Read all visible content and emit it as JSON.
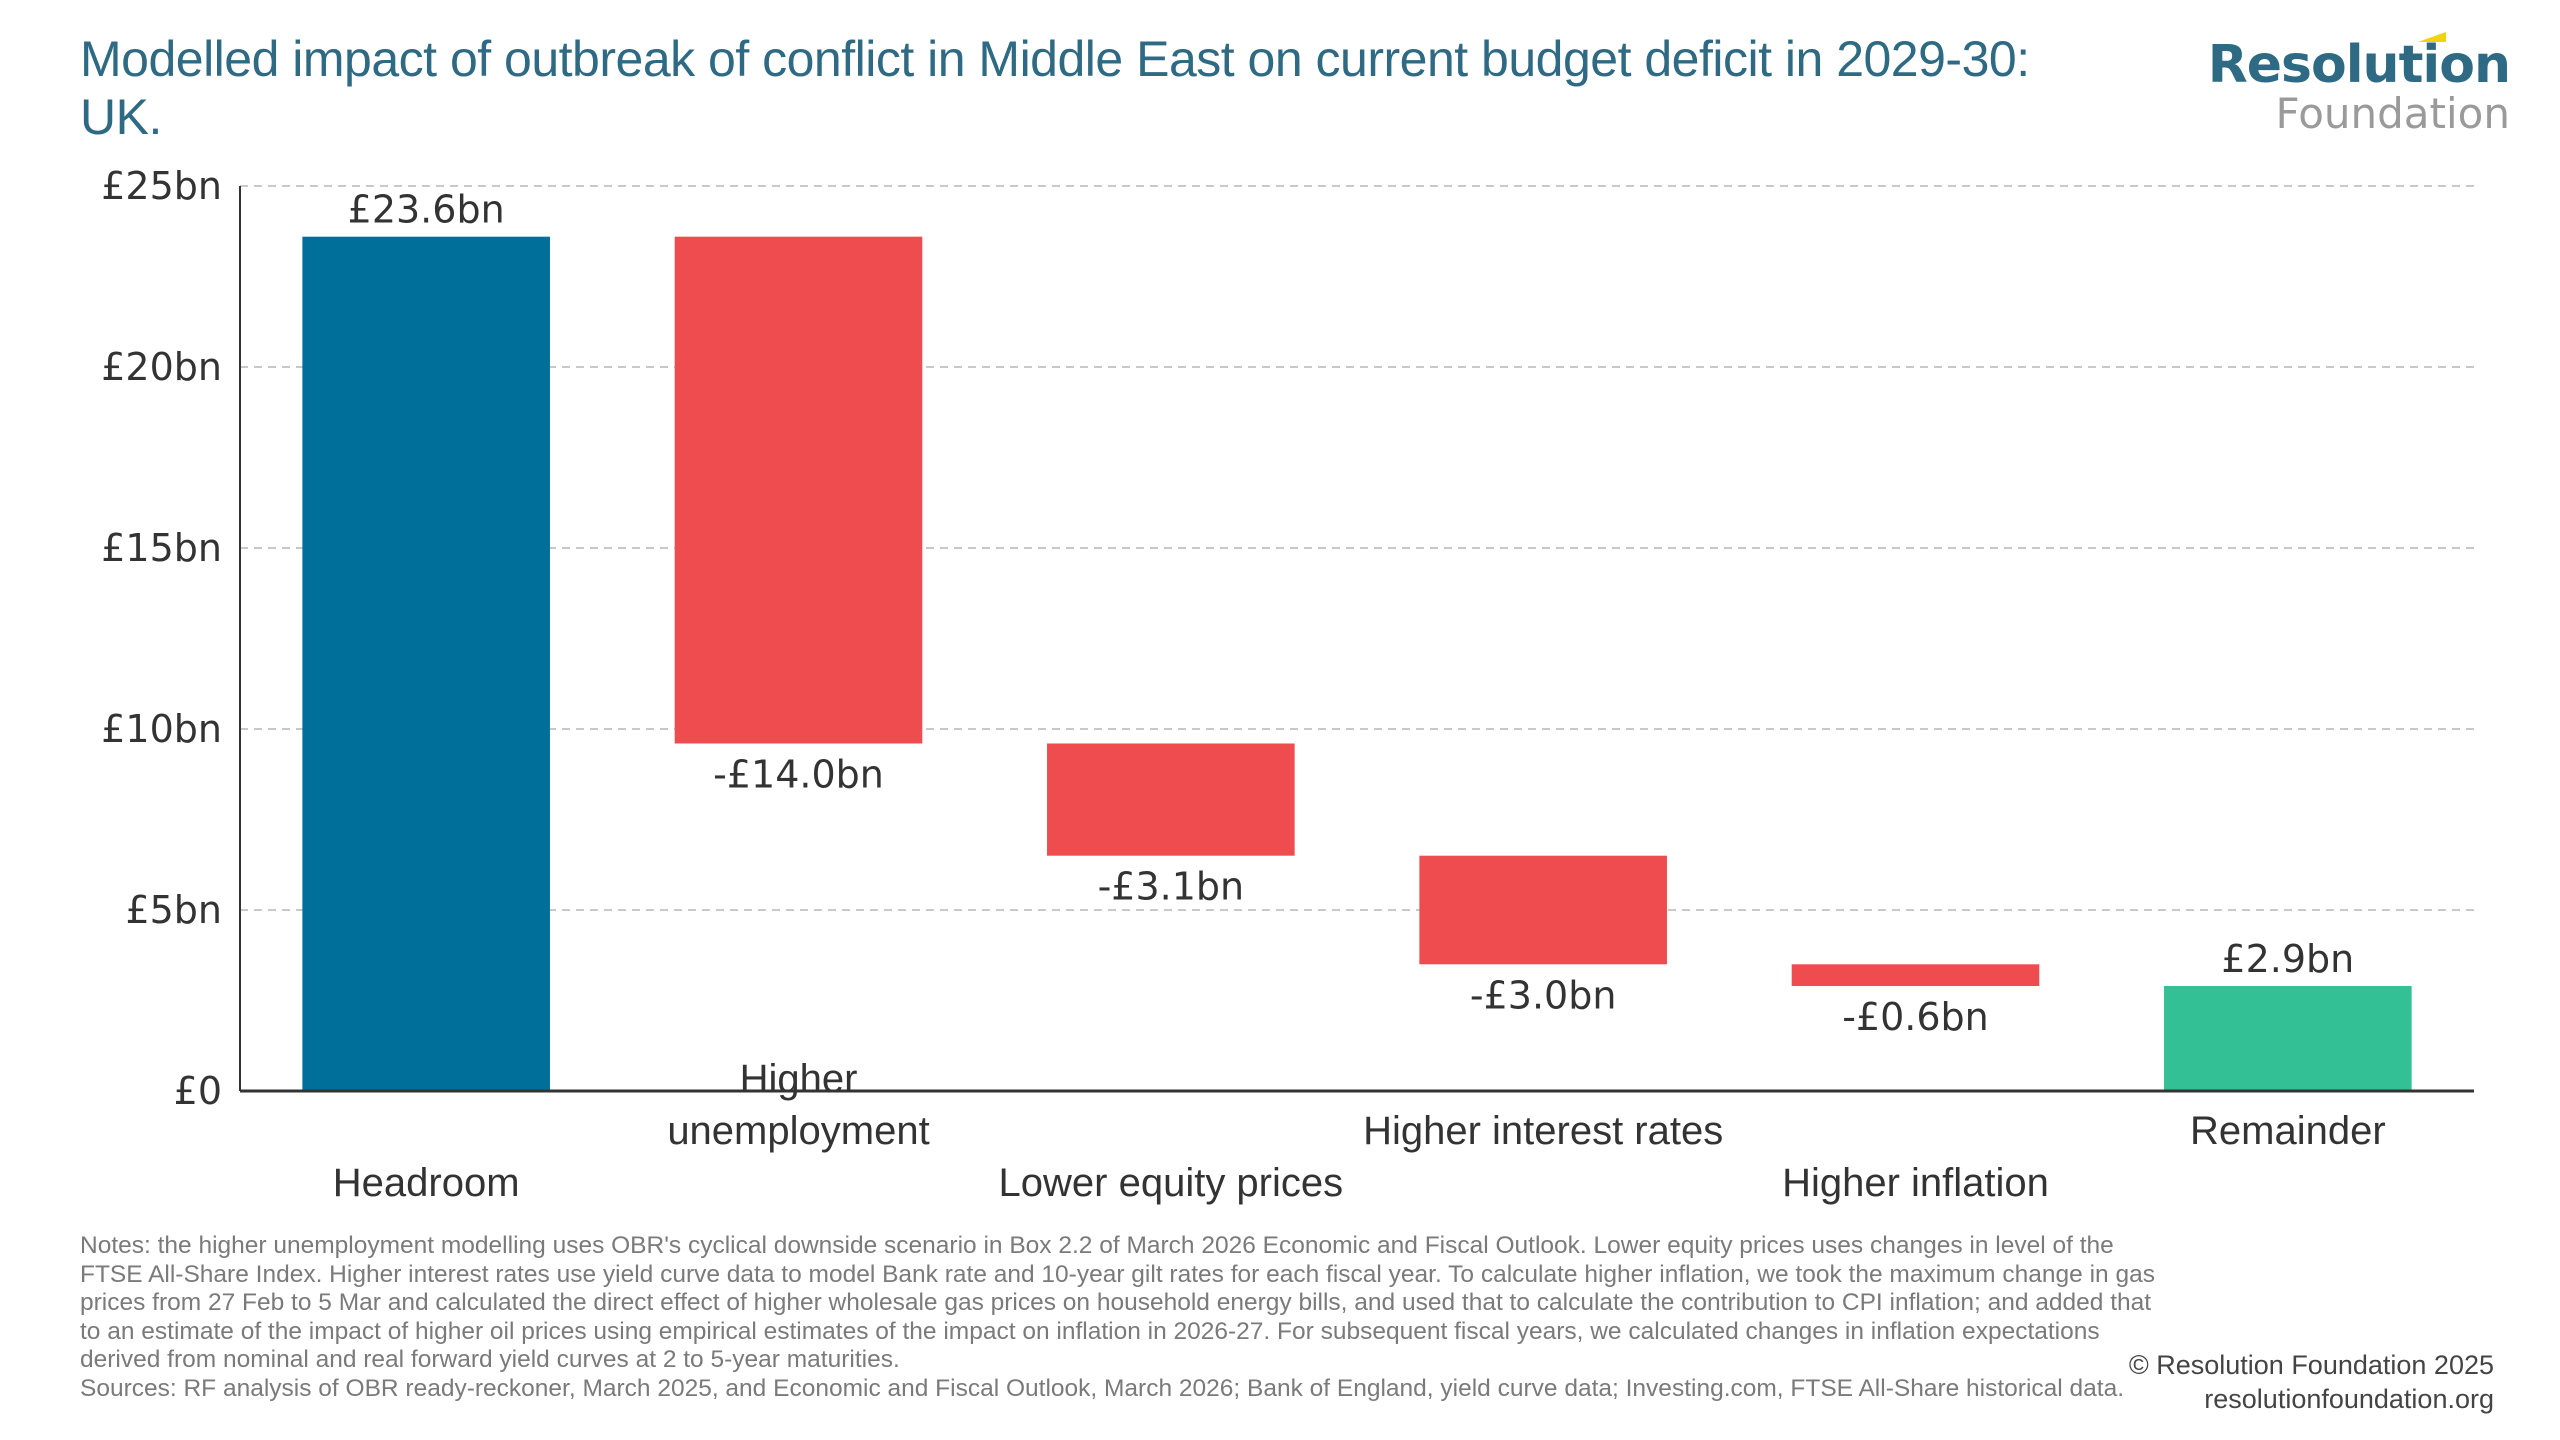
{
  "title": "Modelled impact of outbreak of conflict in Middle East on current budget deficit in 2029-30: UK.",
  "logo": {
    "top": "Resolution",
    "bottom": "Foundation",
    "accent_color": "#f2d20a",
    "text_color": "#2e6a83"
  },
  "colors": {
    "start": "#00709b",
    "decrease": "#ef4c4f",
    "end": "#33c095",
    "grid": "#c8c8c8",
    "axis": "#333333"
  },
  "chart_data": {
    "type": "bar",
    "subtype": "waterfall",
    "title": "Modelled impact of outbreak of conflict in Middle East on current budget deficit in 2029-30: UK.",
    "xlabel": "",
    "ylabel": "",
    "ylim": [
      0,
      25
    ],
    "yticks": [
      0,
      5,
      10,
      15,
      20,
      25
    ],
    "ytick_labels": [
      "£0",
      "£5bn",
      "£10bn",
      "£15bn",
      "£20bn",
      "£25bn"
    ],
    "grid": true,
    "categories": [
      [
        "Headroom"
      ],
      [
        "Higher",
        "unemployment"
      ],
      [
        "Lower equity prices"
      ],
      [
        "Higher interest rates"
      ],
      [
        "Higher inflation"
      ],
      [
        "Remainder"
      ]
    ],
    "category_label_rows": [
      2,
      1,
      2,
      1,
      2,
      1
    ],
    "values": [
      23.6,
      -14.0,
      -3.1,
      -3.0,
      -0.6,
      2.9
    ],
    "kinds": [
      "start",
      "decrease",
      "decrease",
      "decrease",
      "decrease",
      "end"
    ],
    "data_labels": [
      "£23.6bn",
      "-£14.0bn",
      "-£3.1bn",
      "-£3.0bn",
      "-£0.6bn",
      "£2.9bn"
    ]
  },
  "notes": "Notes: the higher unemployment modelling uses OBR's cyclical downside scenario in Box 2.2 of March 2026 Economic and Fiscal Outlook. Lower equity prices uses changes in level of the FTSE All-Share Index. Higher interest rates use yield curve data to model Bank rate and 10-year gilt rates for each fiscal year. To calculate higher inflation, we took the maximum change in gas prices from 27 Feb to 5 Mar and calculated the direct effect of higher wholesale gas prices on household energy bills, and used that to calculate the contribution to CPI inflation; and added that to an estimate of the impact of higher oil prices using empirical estimates of the impact on inflation in 2026-27. For subsequent fiscal years, we calculated changes in inflation expectations derived from nominal and real forward yield curves at 2 to 5-year maturities.",
  "sources": "Sources: RF analysis of OBR ready-reckoner, March 2025, and Economic and Fiscal Outlook, March 2026; Bank of England, yield curve data; Investing.com, FTSE All-Share historical data.",
  "copyright": {
    "line1": "© Resolution Foundation 2025",
    "line2": "resolutionfoundation.org"
  }
}
